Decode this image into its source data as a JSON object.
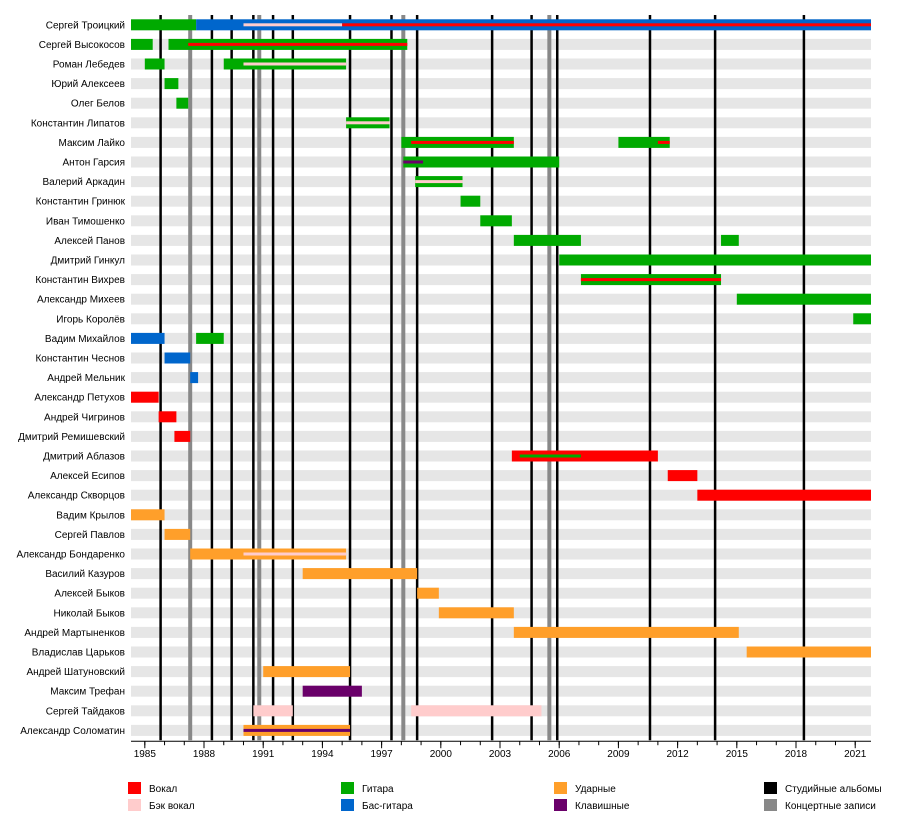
{
  "chart_data": {
    "type": "timeline",
    "xlim": [
      1984.3,
      2021.8
    ],
    "x_ticks": [
      1985,
      1988,
      1991,
      1994,
      1997,
      2000,
      2003,
      2006,
      2009,
      2012,
      2015,
      2018,
      2021
    ],
    "legend": [
      {
        "key": "vocal",
        "label": "Вокал",
        "color": "#ff0000"
      },
      {
        "key": "backvocal",
        "label": "Бэк вокал",
        "color": "#ffcccc"
      },
      {
        "key": "guitar",
        "label": "Гитара",
        "color": "#00aa00"
      },
      {
        "key": "bass",
        "label": "Бас-гитара",
        "color": "#0066cc"
      },
      {
        "key": "drums",
        "label": "Ударные",
        "color": "#ff9f2a"
      },
      {
        "key": "keys",
        "label": "Клавишные",
        "color": "#6a006a"
      },
      {
        "key": "studio",
        "label": "Студийные альбомы",
        "color": "#000000"
      },
      {
        "key": "live",
        "label": "Концертные записи",
        "color": "#888888"
      }
    ],
    "studio_albums": [
      1985.8,
      1988.4,
      1989.4,
      1990.5,
      1991.5,
      1992.5,
      1995.4,
      1997.5,
      1998.8,
      2002.6,
      2004.6,
      2005.9,
      2010.6,
      2013.9,
      2018.4
    ],
    "live_albums": [
      1987.3,
      1990.8,
      1998.1,
      2005.5
    ],
    "members": [
      {
        "name": "Сергей Троицкий",
        "bars": [
          {
            "role": "guitar",
            "start": 1984.3,
            "end": 1987.6
          },
          {
            "role": "bass",
            "start": 1987.6,
            "end": 2021.8
          },
          {
            "role": "backvocal",
            "start": 1990.0,
            "end": 1995.0,
            "overlay": true
          },
          {
            "role": "vocal",
            "start": 1995.0,
            "end": 2021.8,
            "overlay": true
          }
        ]
      },
      {
        "name": "Сергей Высокосов",
        "bars": [
          {
            "role": "guitar",
            "start": 1984.3,
            "end": 1985.4
          },
          {
            "role": "guitar",
            "start": 1986.2,
            "end": 1998.3
          },
          {
            "role": "vocal",
            "start": 1987.2,
            "end": 1998.3,
            "overlay": true
          }
        ]
      },
      {
        "name": "Роман Лебедев",
        "bars": [
          {
            "role": "guitar",
            "start": 1985.0,
            "end": 1986.0
          },
          {
            "role": "guitar",
            "start": 1989.0,
            "end": 1995.2
          },
          {
            "role": "backvocal",
            "start": 1990.0,
            "end": 1995.2,
            "overlay": true
          }
        ]
      },
      {
        "name": "Юрий Алексеев",
        "bars": [
          {
            "role": "guitar",
            "start": 1986.0,
            "end": 1986.7
          }
        ]
      },
      {
        "name": "Олег Белов",
        "bars": [
          {
            "role": "guitar",
            "start": 1986.6,
            "end": 1987.2
          }
        ]
      },
      {
        "name": "Константин Липатов",
        "bars": [
          {
            "role": "guitar",
            "start": 1995.2,
            "end": 1997.4
          },
          {
            "role": "backvocal",
            "start": 1995.2,
            "end": 1997.4,
            "overlay": true
          }
        ]
      },
      {
        "name": "Максим Лайко",
        "bars": [
          {
            "role": "guitar",
            "start": 1998.0,
            "end": 2003.7
          },
          {
            "role": "vocal",
            "start": 1998.5,
            "end": 2003.7,
            "overlay": true
          },
          {
            "role": "guitar",
            "start": 2009.0,
            "end": 2011.6
          },
          {
            "role": "vocal",
            "start": 2011.0,
            "end": 2011.6,
            "overlay": true
          }
        ]
      },
      {
        "name": "Антон Гарсия",
        "bars": [
          {
            "role": "guitar",
            "start": 1998.1,
            "end": 2006.0
          },
          {
            "role": "keys",
            "start": 1998.1,
            "end": 1999.1,
            "overlay": true
          }
        ]
      },
      {
        "name": "Валерий Аркадин",
        "bars": [
          {
            "role": "guitar",
            "start": 1998.7,
            "end": 2001.1
          },
          {
            "role": "backvocal",
            "start": 1998.7,
            "end": 2001.1,
            "overlay": true
          }
        ]
      },
      {
        "name": "Константин Гринюк",
        "bars": [
          {
            "role": "guitar",
            "start": 2001.0,
            "end": 2002.0
          }
        ]
      },
      {
        "name": "Иван Тимошенко",
        "bars": [
          {
            "role": "guitar",
            "start": 2002.0,
            "end": 2003.6
          }
        ]
      },
      {
        "name": "Алексей Панов",
        "bars": [
          {
            "role": "guitar",
            "start": 2003.7,
            "end": 2007.1
          },
          {
            "role": "guitar",
            "start": 2014.2,
            "end": 2015.1
          }
        ]
      },
      {
        "name": "Дмитрий Гинкул",
        "bars": [
          {
            "role": "guitar",
            "start": 2006.0,
            "end": 2021.8
          }
        ]
      },
      {
        "name": "Константин Вихрев",
        "bars": [
          {
            "role": "guitar",
            "start": 2007.1,
            "end": 2014.2
          },
          {
            "role": "vocal",
            "start": 2007.1,
            "end": 2014.2,
            "overlay": true
          }
        ]
      },
      {
        "name": "Александр Михеев",
        "bars": [
          {
            "role": "guitar",
            "start": 2015.0,
            "end": 2021.8
          }
        ]
      },
      {
        "name": "Игорь Королёв",
        "bars": [
          {
            "role": "guitar",
            "start": 2020.9,
            "end": 2021.8
          }
        ]
      },
      {
        "name": "Вадим Михайлов",
        "bars": [
          {
            "role": "bass",
            "start": 1984.3,
            "end": 1986.0
          },
          {
            "role": "guitar",
            "start": 1987.6,
            "end": 1989.0
          }
        ]
      },
      {
        "name": "Константин Чеснов",
        "bars": [
          {
            "role": "bass",
            "start": 1986.0,
            "end": 1987.3
          }
        ]
      },
      {
        "name": "Андрей Мельник",
        "bars": [
          {
            "role": "bass",
            "start": 1987.3,
            "end": 1987.7
          }
        ]
      },
      {
        "name": "Александр Петухов",
        "bars": [
          {
            "role": "vocal",
            "start": 1984.3,
            "end": 1985.7
          }
        ]
      },
      {
        "name": "Андрей Чигринов",
        "bars": [
          {
            "role": "vocal",
            "start": 1985.7,
            "end": 1986.6
          }
        ]
      },
      {
        "name": "Дмитрий Ремишевский",
        "bars": [
          {
            "role": "vocal",
            "start": 1986.5,
            "end": 1987.3
          }
        ]
      },
      {
        "name": "Дмитрий Аблазов",
        "bars": [
          {
            "role": "vocal",
            "start": 2003.6,
            "end": 2011.0
          },
          {
            "role": "guitar",
            "start": 2004.0,
            "end": 2007.1,
            "overlay": true
          }
        ]
      },
      {
        "name": "Алексей Есипов",
        "bars": [
          {
            "role": "vocal",
            "start": 2011.5,
            "end": 2013.0
          }
        ]
      },
      {
        "name": "Александр Скворцов",
        "bars": [
          {
            "role": "vocal",
            "start": 2013.0,
            "end": 2021.8
          }
        ]
      },
      {
        "name": "Вадим Крылов",
        "bars": [
          {
            "role": "drums",
            "start": 1984.3,
            "end": 1986.0
          }
        ]
      },
      {
        "name": "Сергей Павлов",
        "bars": [
          {
            "role": "drums",
            "start": 1986.0,
            "end": 1987.3
          }
        ]
      },
      {
        "name": "Александр Бондаренко",
        "bars": [
          {
            "role": "drums",
            "start": 1987.3,
            "end": 1995.2
          },
          {
            "role": "backvocal",
            "start": 1990.0,
            "end": 1995.2,
            "overlay": true
          }
        ]
      },
      {
        "name": "Василий Казуров",
        "bars": [
          {
            "role": "drums",
            "start": 1993.0,
            "end": 1998.8
          }
        ]
      },
      {
        "name": "Алексей Быков",
        "bars": [
          {
            "role": "drums",
            "start": 1998.8,
            "end": 1999.9
          }
        ]
      },
      {
        "name": "Николай Быков",
        "bars": [
          {
            "role": "drums",
            "start": 1999.9,
            "end": 2003.7
          }
        ]
      },
      {
        "name": "Андрей Мартыненков",
        "bars": [
          {
            "role": "drums",
            "start": 2003.7,
            "end": 2015.1
          }
        ]
      },
      {
        "name": "Владислав Царьков",
        "bars": [
          {
            "role": "drums",
            "start": 2015.5,
            "end": 2021.8
          }
        ]
      },
      {
        "name": "Андрей Шатуновский",
        "bars": [
          {
            "role": "drums",
            "start": 1991.0,
            "end": 1995.4
          }
        ]
      },
      {
        "name": "Максим Трефан",
        "bars": [
          {
            "role": "keys",
            "start": 1993.0,
            "end": 1996.0
          }
        ]
      },
      {
        "name": "Сергей Тайдаков",
        "bars": [
          {
            "role": "backvocal",
            "start": 1990.5,
            "end": 1992.5
          },
          {
            "role": "backvocal",
            "start": 1998.5,
            "end": 2005.1
          }
        ]
      },
      {
        "name": "Александр Соломатин",
        "bars": [
          {
            "role": "drums",
            "start": 1990.0,
            "end": 1995.4
          },
          {
            "role": "keys",
            "start": 1990.0,
            "end": 1995.4,
            "overlay": true
          }
        ]
      }
    ]
  }
}
